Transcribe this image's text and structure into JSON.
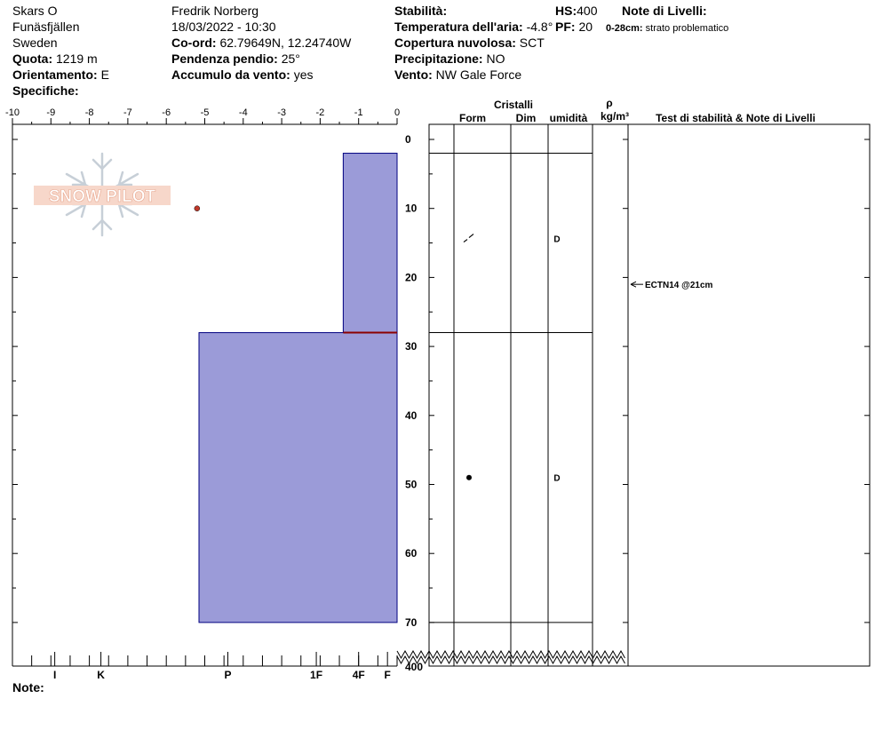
{
  "header": {
    "site": "Skars O",
    "area": "Funäsfjällen",
    "country": "Sweden",
    "elevation_label": "Quota:",
    "elevation_value": "1219 m",
    "aspect_label": "Orientamento:",
    "aspect_value": "E",
    "specifics_label": "Specifiche:",
    "observer": "Fredrik Norberg",
    "datetime": "18/03/2022 - 10:30",
    "coord_label": "Co-ord:",
    "coord_value": "62.79649N, 12.24740W",
    "slope_label": "Pendenza pendio:",
    "slope_value": "25°",
    "wind_loading_label": "Accumulo da vento:",
    "wind_loading_value": "yes",
    "stability_label": "Stabilità:",
    "air_temp_label": "Temperatura dell'aria:",
    "air_temp_value": "-4.8°",
    "cloud_label": "Copertura nuvolosa:",
    "cloud_value": "SCT",
    "precip_label": "Precipitazione:",
    "precip_value": "NO",
    "wind_label": "Vento:",
    "wind_value": "NW Gale Force",
    "hs_label": "HS:",
    "hs_value": "400",
    "pf_label": "PF:",
    "pf_value": "20",
    "layer_notes_label": "Note di Livelli:",
    "layer_note_depth": "0-28cm:",
    "layer_note_text": "strato problematico"
  },
  "columns": {
    "crystals": "Cristalli",
    "form": "Form",
    "size": "Dim",
    "moisture": "umidità",
    "rho": "ρ",
    "density_unit": "kg/m³",
    "tests": "Test di stabilità & Note di Livelli"
  },
  "footer": {
    "note_label": "Note:"
  },
  "logo_text": "SNOW PILOT",
  "colors": {
    "layer_fill": "#9b9bd8",
    "layer_stroke": "#000080",
    "weak_layer": "#8b0000",
    "temp_point": "#c0392b"
  },
  "chart_data": {
    "type": "snow_profile",
    "temperature_axis": {
      "min": -10,
      "max": 0,
      "ticks": [
        -10,
        -9,
        -8,
        -7,
        -6,
        -5,
        -4,
        -3,
        -2,
        -1,
        0
      ]
    },
    "depth_axis": {
      "min": 0,
      "max": 70,
      "ticks": [
        0,
        10,
        20,
        30,
        40,
        50,
        60,
        70
      ],
      "bottom_label": "400"
    },
    "hardness_labels": [
      {
        "label": "I",
        "temp": -8.9
      },
      {
        "label": "K",
        "temp": -7.7
      },
      {
        "label": "P",
        "temp": -4.4
      },
      {
        "label": "1F",
        "temp": -2.1
      },
      {
        "label": "4F",
        "temp": -1.0
      },
      {
        "label": "F",
        "temp": -0.25
      }
    ],
    "layers": [
      {
        "top": 2,
        "bottom": 28,
        "hardness_temp": -1.4,
        "grain_symbol": "decomposing",
        "moisture": "D"
      },
      {
        "top": 28,
        "bottom": 70,
        "hardness_temp": -5.15,
        "grain_symbol": "round",
        "moisture": "D"
      }
    ],
    "weak_layer_depth": 28,
    "temperatures": [
      {
        "depth": 10,
        "temp": -5.2
      }
    ],
    "stability_tests": [
      {
        "depth": 21,
        "label": "ECTN14 @21cm"
      }
    ]
  }
}
